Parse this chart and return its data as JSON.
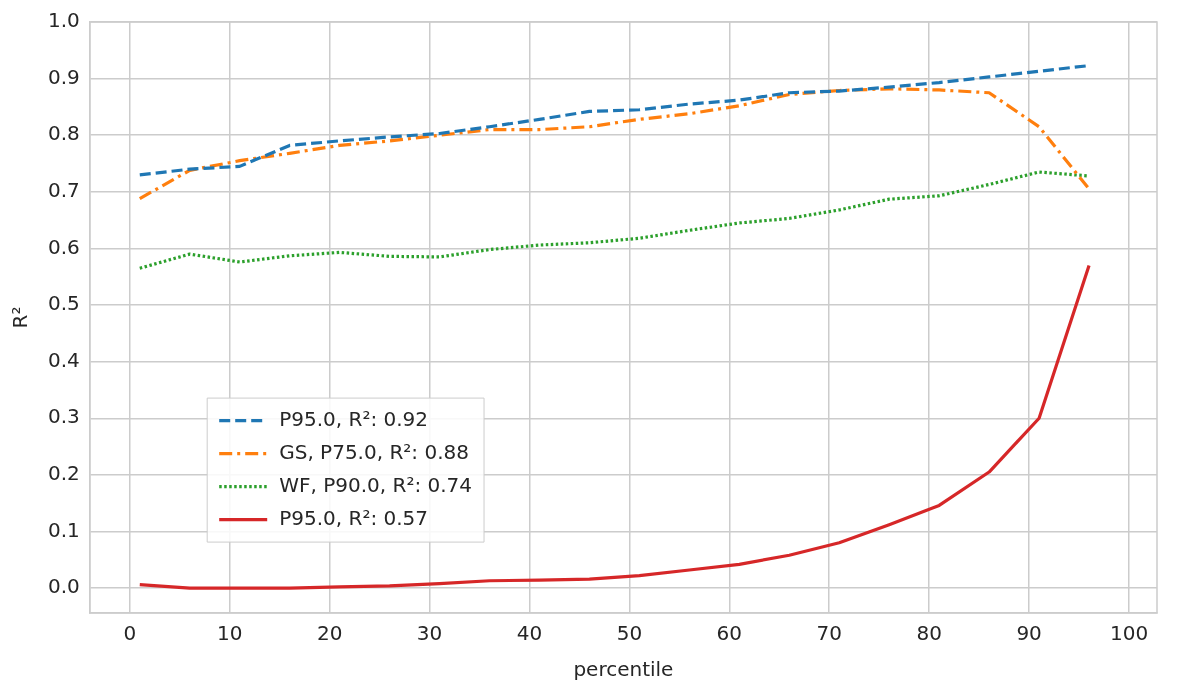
{
  "chart_data": {
    "type": "line",
    "xlabel": "percentile",
    "ylabel": "R²",
    "x": [
      1,
      6,
      11,
      16,
      21,
      26,
      31,
      36,
      41,
      46,
      51,
      56,
      61,
      66,
      71,
      76,
      81,
      86,
      91,
      96
    ],
    "xlim": [
      -4,
      102.8
    ],
    "xticks": [
      0,
      10,
      20,
      30,
      40,
      50,
      60,
      70,
      80,
      90,
      100
    ],
    "ylim": [
      -0.044,
      1.0
    ],
    "yticks": [
      {
        "value": 0,
        "label": "0.0"
      },
      0.1,
      0.2,
      0.3,
      0.4,
      0.5,
      0.6,
      0.7,
      0.8,
      0.9,
      {
        "value": 1,
        "label": "1.0"
      }
    ],
    "grid": true,
    "legend": "bottom left",
    "marker": "none",
    "series": [
      {
        "name": "P95.0, R²: 0.92",
        "color": "#1f77b4",
        "line_style": "dashed",
        "values": [
          0.73,
          0.74,
          0.745,
          0.782,
          0.79,
          0.797,
          0.803,
          0.815,
          0.828,
          0.842,
          0.845,
          0.855,
          0.862,
          0.875,
          0.878,
          0.885,
          0.893,
          0.903,
          0.913,
          0.923
        ]
      },
      {
        "name": "GS, P75.0, R²: 0.88",
        "color": "#ff7f0e",
        "line_style": "dashdot",
        "values": [
          0.688,
          0.738,
          0.755,
          0.768,
          0.782,
          0.79,
          0.8,
          0.81,
          0.81,
          0.815,
          0.828,
          0.838,
          0.852,
          0.872,
          0.879,
          0.882,
          0.88,
          0.875,
          0.815,
          0.705
        ]
      },
      {
        "name": "WF, P90.0, R²: 0.74",
        "color": "#2ca02c",
        "line_style": "dotted",
        "values": [
          0.565,
          0.59,
          0.576,
          0.587,
          0.593,
          0.586,
          0.585,
          0.598,
          0.606,
          0.61,
          0.618,
          0.632,
          0.645,
          0.653,
          0.668,
          0.687,
          0.693,
          0.713,
          0.735,
          0.728
        ]
      },
      {
        "name": "P95.0, R²: 0.57",
        "color": "#d62728",
        "line_style": "solid",
        "values": [
          0.006,
          0.0,
          0.0,
          0.0,
          0.002,
          0.004,
          0.008,
          0.013,
          0.014,
          0.016,
          0.022,
          0.032,
          0.042,
          0.058,
          0.08,
          0.112,
          0.146,
          0.205,
          0.3,
          0.57
        ]
      }
    ]
  }
}
